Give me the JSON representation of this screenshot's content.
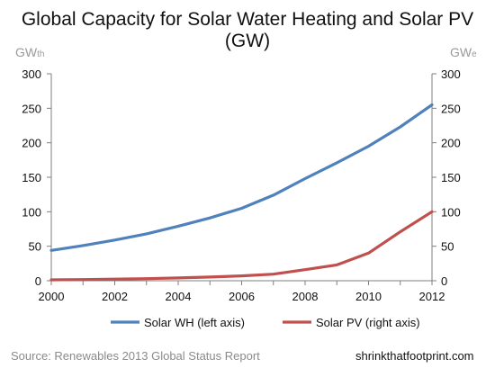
{
  "title": "Global Capacity for Solar Water Heating and Solar PV (GW)",
  "left_unit": {
    "main": "GW",
    "sub": "th"
  },
  "right_unit": {
    "main": "GW",
    "sub": "e"
  },
  "source": "Source:  Renewables 2013 Global Status Report",
  "site": "shrinkthatfootprint.com",
  "chart_data": {
    "type": "line",
    "title": "Global Capacity for Solar Water Heating and Solar PV (GW)",
    "xlim": [
      2000,
      2012
    ],
    "x_ticks": [
      2000,
      2002,
      2004,
      2006,
      2008,
      2010,
      2012
    ],
    "ylim_left": [
      0,
      300
    ],
    "ylim_right": [
      0,
      300
    ],
    "y_ticks": [
      0,
      50,
      100,
      150,
      200,
      250,
      300
    ],
    "grid": false,
    "legend": "bottom",
    "x": [
      2000,
      2001,
      2002,
      2003,
      2004,
      2005,
      2006,
      2007,
      2008,
      2009,
      2010,
      2011,
      2012
    ],
    "series": [
      {
        "name": "Solar WH (left axis)",
        "axis": "left",
        "color": "#4f81bd",
        "values": [
          44,
          51,
          59,
          68,
          79,
          91,
          105,
          124,
          148,
          171,
          195,
          223,
          255
        ]
      },
      {
        "name": "Solar PV (right axis)",
        "axis": "right",
        "color": "#c0504d",
        "values": [
          1.3,
          1.7,
          2.3,
          3.0,
          4.0,
          5.4,
          7.0,
          9.5,
          16,
          23,
          40,
          71,
          100
        ]
      }
    ]
  }
}
